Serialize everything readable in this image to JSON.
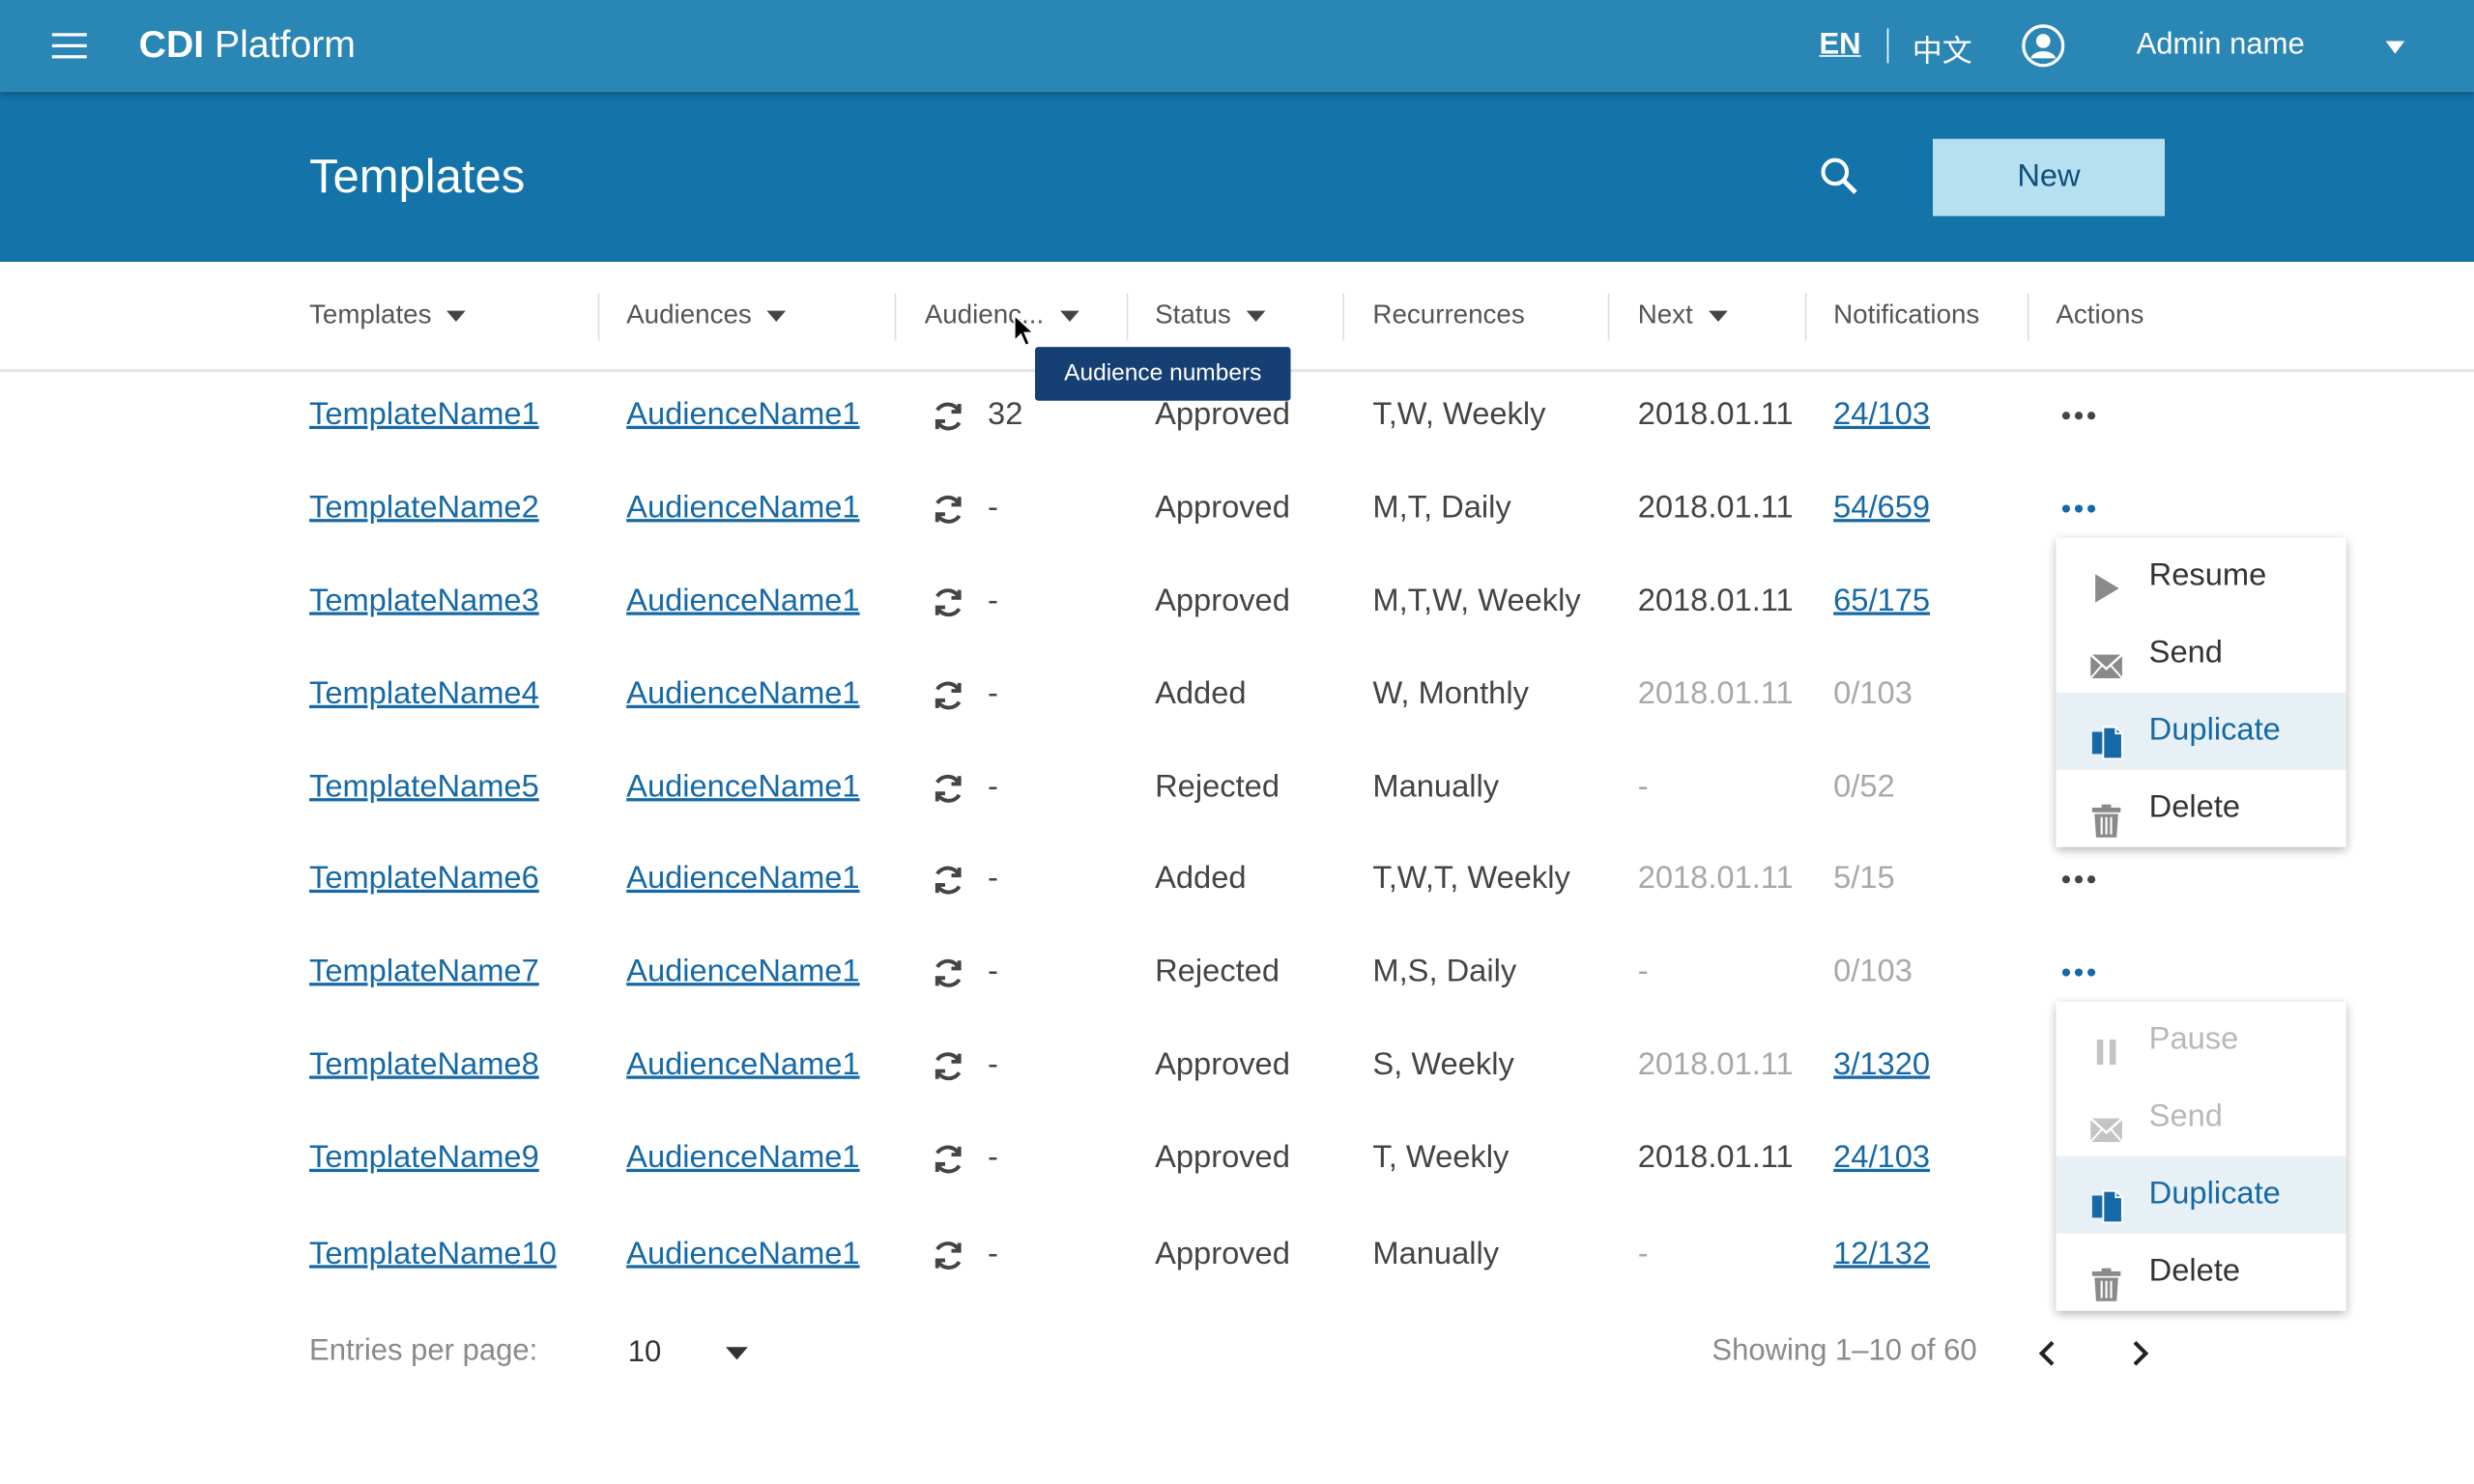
{
  "app": {
    "brand_bold": "CDI",
    "brand_rest": " Platform",
    "lang_en": "EN",
    "lang_zh": "中文",
    "admin_name": "Admin name"
  },
  "header": {
    "title": "Templates",
    "new_label": "New"
  },
  "table": {
    "columns": [
      "Templates",
      "Audiences",
      "Audienc...",
      "Status",
      "Recurrences",
      "Next",
      "Notifications",
      "Actions"
    ],
    "tooltip": "Audience numbers",
    "rows": [
      {
        "template": "TemplateName1",
        "audience": "AudienceName1",
        "count": "32",
        "status": "Approved",
        "recurrence": "T,W, Weekly",
        "next": "2018.01.11",
        "notifications": "24/103"
      },
      {
        "template": "TemplateName2",
        "audience": "AudienceName1",
        "count": "-",
        "status": "Approved",
        "recurrence": "M,T, Daily",
        "next": "2018.01.11",
        "notifications": "54/659"
      },
      {
        "template": "TemplateName3",
        "audience": "AudienceName1",
        "count": "-",
        "status": "Approved",
        "recurrence": "M,T,W, Weekly",
        "next": "2018.01.11",
        "notifications": "65/175"
      },
      {
        "template": "TemplateName4",
        "audience": "AudienceName1",
        "count": "-",
        "status": "Added",
        "recurrence": "W, Monthly",
        "next": "2018.01.11",
        "notifications": "0/103"
      },
      {
        "template": "TemplateName5",
        "audience": "AudienceName1",
        "count": "-",
        "status": "Rejected",
        "recurrence": "Manually",
        "next": "-",
        "notifications": "0/52"
      },
      {
        "template": "TemplateName6",
        "audience": "AudienceName1",
        "count": "-",
        "status": "Added",
        "recurrence": "T,W,T, Weekly",
        "next": "2018.01.11",
        "notifications": "5/15"
      },
      {
        "template": "TemplateName7",
        "audience": "AudienceName1",
        "count": "-",
        "status": "Rejected",
        "recurrence": "M,S, Daily",
        "next": "-",
        "notifications": "0/103"
      },
      {
        "template": "TemplateName8",
        "audience": "AudienceName1",
        "count": "-",
        "status": "Approved",
        "recurrence": "S, Weekly",
        "next": "2018.01.11",
        "notifications": "3/1320"
      },
      {
        "template": "TemplateName9",
        "audience": "AudienceName1",
        "count": "-",
        "status": "Approved",
        "recurrence": "T, Weekly",
        "next": "2018.01.11",
        "notifications": "24/103"
      },
      {
        "template": "TemplateName10",
        "audience": "AudienceName1",
        "count": "-",
        "status": "Approved",
        "recurrence": "Manually",
        "next": "-",
        "notifications": "12/132"
      }
    ]
  },
  "menu1": {
    "items": [
      {
        "label": "Resume",
        "icon": "play-icon",
        "state": "normal"
      },
      {
        "label": "Send",
        "icon": "envelope-icon",
        "state": "normal"
      },
      {
        "label": "Duplicate",
        "icon": "duplicate-icon",
        "state": "selected"
      },
      {
        "label": "Delete",
        "icon": "trash-icon",
        "state": "normal"
      }
    ]
  },
  "menu2": {
    "items": [
      {
        "label": "Pause",
        "icon": "pause-icon",
        "state": "disabled"
      },
      {
        "label": "Send",
        "icon": "envelope-icon",
        "state": "disabled"
      },
      {
        "label": "Duplicate",
        "icon": "duplicate-icon",
        "state": "selected"
      },
      {
        "label": "Delete",
        "icon": "trash-icon",
        "state": "normal"
      }
    ]
  },
  "footer": {
    "entries_label": "Entries per page:",
    "entries_value": "10",
    "showing": "Showing 1–10 of 60"
  },
  "colors": {
    "topbar": "#2a86b5",
    "header": "#1473a8",
    "link": "#1669a6",
    "new_button": "#b6e0ef",
    "tooltip": "#163f73",
    "selected_menu": "#e6f0f5"
  }
}
